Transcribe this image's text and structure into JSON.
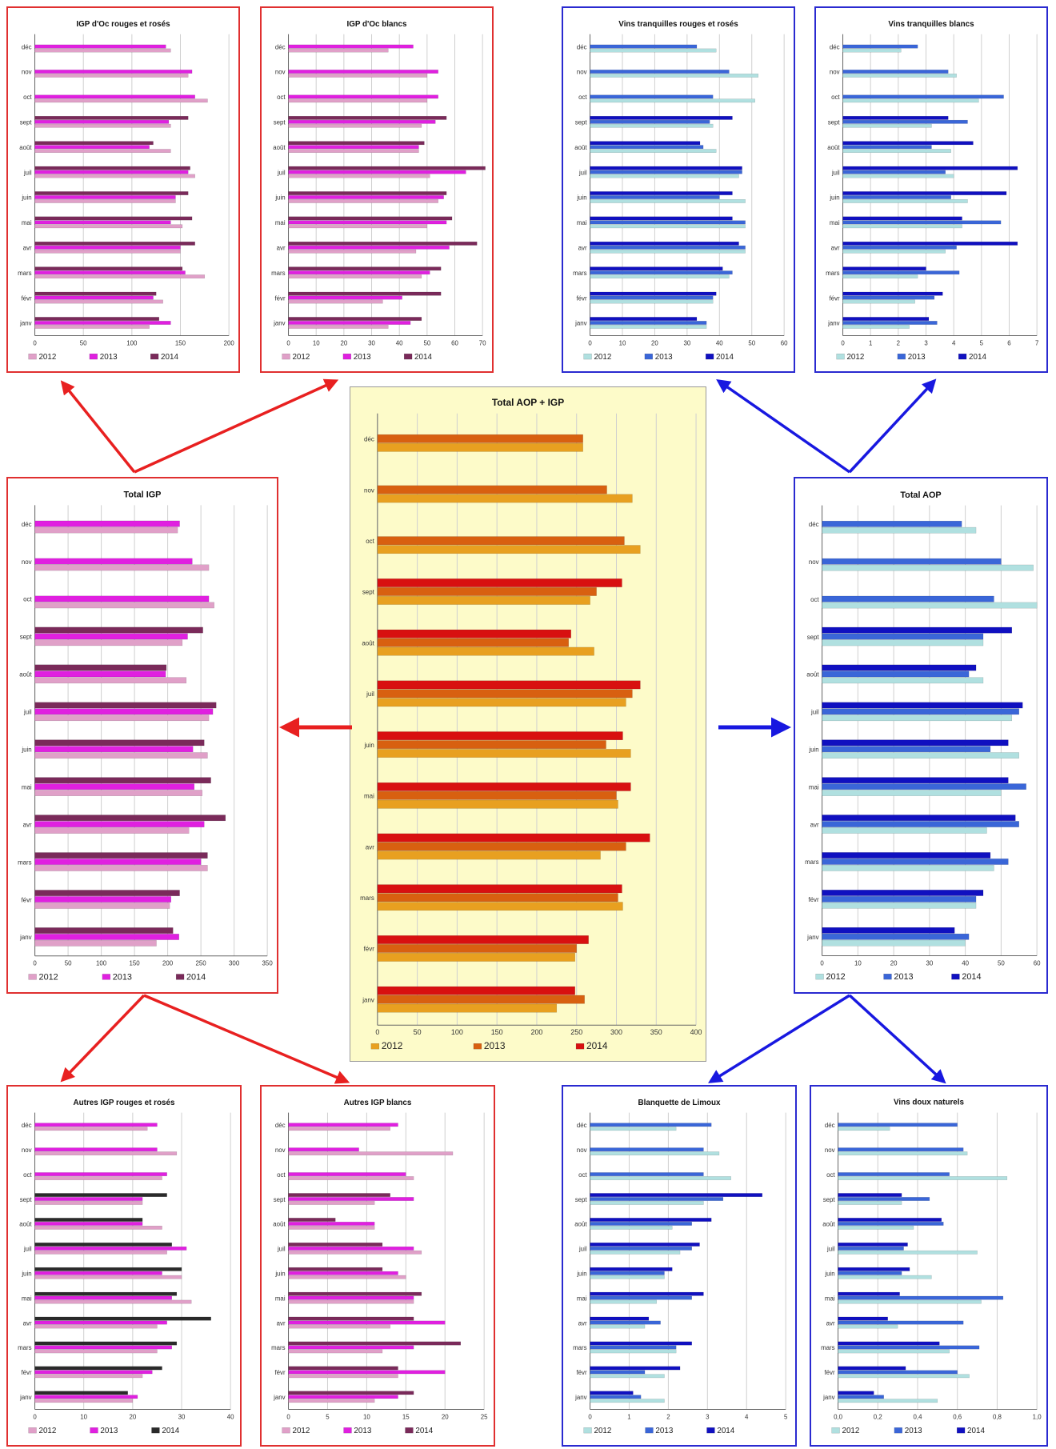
{
  "months": [
    "janv",
    "févr",
    "mars",
    "avr",
    "mai",
    "juin",
    "juil",
    "août",
    "sept",
    "oct",
    "nov",
    "déc"
  ],
  "colors": {
    "pink": [
      "#e0a0c8",
      "#e020e0",
      "#7a2a5a"
    ],
    "orange": [
      "#e8a020",
      "#d86010",
      "#d81010"
    ],
    "blue": [
      "#b0e0e0",
      "#3a66d8",
      "#1010c0"
    ],
    "dark_series": [
      "#e0a0c8",
      "#e020e0",
      "#2a2a2a"
    ]
  },
  "chart_data": [
    {
      "id": "igp-oc-rouges",
      "type": "bar",
      "orientation": "horizontal",
      "title": "IGP d'Oc rouges et rosés",
      "xlim": [
        0,
        200
      ],
      "xticks": [
        0,
        50,
        100,
        150,
        200
      ],
      "palette": "pink",
      "series": [
        {
          "name": "2012",
          "values": [
            118,
            132,
            175,
            150,
            152,
            145,
            165,
            140,
            140,
            178,
            158,
            140
          ]
        },
        {
          "name": "2013",
          "values": [
            140,
            122,
            155,
            150,
            140,
            145,
            158,
            118,
            138,
            165,
            162,
            135
          ]
        },
        {
          "name": "2014",
          "values": [
            128,
            125,
            152,
            165,
            162,
            158,
            160,
            122,
            158,
            0,
            0,
            0
          ]
        }
      ]
    },
    {
      "id": "igp-oc-blancs",
      "type": "bar",
      "orientation": "horizontal",
      "title": "IGP d'Oc blancs",
      "xlim": [
        0,
        70
      ],
      "xticks": [
        0,
        10,
        20,
        30,
        40,
        50,
        60,
        70
      ],
      "palette": "pink",
      "series": [
        {
          "name": "2012",
          "values": [
            36,
            34,
            48,
            46,
            50,
            54,
            51,
            47,
            48,
            50,
            50,
            36
          ]
        },
        {
          "name": "2013",
          "values": [
            44,
            41,
            51,
            58,
            57,
            56,
            64,
            47,
            53,
            54,
            54,
            45
          ]
        },
        {
          "name": "2014",
          "values": [
            48,
            55,
            55,
            68,
            59,
            57,
            71,
            49,
            57,
            0,
            0,
            0
          ]
        }
      ]
    },
    {
      "id": "vins-tranquilles-rouges",
      "type": "bar",
      "orientation": "horizontal",
      "title": "Vins tranquilles rouges et rosés",
      "xlim": [
        0,
        60
      ],
      "xticks": [
        0,
        10,
        20,
        30,
        40,
        50,
        60
      ],
      "palette": "blue",
      "series": [
        {
          "name": "2012",
          "values": [
            36,
            38,
            43,
            48,
            48,
            48,
            46,
            39,
            38,
            51,
            52,
            39
          ]
        },
        {
          "name": "2013",
          "values": [
            36,
            38,
            44,
            48,
            48,
            40,
            47,
            35,
            37,
            38,
            43,
            33
          ]
        },
        {
          "name": "2014",
          "values": [
            33,
            39,
            41,
            46,
            44,
            44,
            47,
            34,
            44,
            0,
            0,
            0
          ]
        }
      ]
    },
    {
      "id": "vins-tranquilles-blancs",
      "type": "bar",
      "orientation": "horizontal",
      "title": "Vins tranquilles blancs",
      "xlim": [
        0,
        7
      ],
      "xticks": [
        0,
        1,
        2,
        3,
        4,
        5,
        6,
        7
      ],
      "palette": "blue",
      "series": [
        {
          "name": "2012",
          "values": [
            2.4,
            2.6,
            2.7,
            3.7,
            4.3,
            4.5,
            4.0,
            3.9,
            3.2,
            4.9,
            4.1,
            2.1
          ]
        },
        {
          "name": "2013",
          "values": [
            3.4,
            3.3,
            4.2,
            4.1,
            5.7,
            3.9,
            3.7,
            3.2,
            4.5,
            5.8,
            3.8,
            2.7
          ]
        },
        {
          "name": "2014",
          "values": [
            3.1,
            3.6,
            3.0,
            6.3,
            4.3,
            5.9,
            6.3,
            4.7,
            3.8,
            0,
            0,
            0
          ]
        }
      ]
    },
    {
      "id": "total-igp",
      "type": "bar",
      "orientation": "horizontal",
      "title": "Total IGP",
      "xlim": [
        0,
        350
      ],
      "xticks": [
        0,
        50,
        100,
        150,
        200,
        250,
        300,
        350
      ],
      "palette": "pink",
      "series": [
        {
          "name": "2012",
          "values": [
            183,
            203,
            260,
            232,
            252,
            260,
            262,
            228,
            222,
            270,
            262,
            215
          ]
        },
        {
          "name": "2013",
          "values": [
            217,
            205,
            250,
            255,
            240,
            238,
            268,
            197,
            230,
            262,
            237,
            218
          ]
        },
        {
          "name": "2014",
          "values": [
            208,
            218,
            260,
            287,
            265,
            255,
            273,
            198,
            253,
            0,
            0,
            0
          ]
        }
      ]
    },
    {
      "id": "total-aop-igp",
      "type": "bar",
      "orientation": "horizontal",
      "title": "Total AOP + IGP",
      "xlim": [
        0,
        400
      ],
      "xticks": [
        0,
        50,
        100,
        150,
        200,
        250,
        300,
        350,
        400
      ],
      "palette": "orange",
      "series": [
        {
          "name": "2012",
          "values": [
            225,
            248,
            308,
            280,
            302,
            318,
            312,
            272,
            267,
            330,
            320,
            258
          ]
        },
        {
          "name": "2013",
          "values": [
            260,
            250,
            302,
            312,
            300,
            287,
            320,
            240,
            275,
            310,
            288,
            258
          ]
        },
        {
          "name": "2014",
          "values": [
            248,
            265,
            307,
            342,
            318,
            308,
            330,
            243,
            307,
            0,
            0,
            0
          ]
        }
      ]
    },
    {
      "id": "total-aop",
      "type": "bar",
      "orientation": "horizontal",
      "title": "Total AOP",
      "xlim": [
        0,
        60
      ],
      "xticks": [
        0,
        10,
        20,
        30,
        40,
        50,
        60
      ],
      "palette": "blue",
      "series": [
        {
          "name": "2012",
          "values": [
            40,
            43,
            48,
            46,
            50,
            55,
            53,
            45,
            45,
            60,
            59,
            43
          ]
        },
        {
          "name": "2013",
          "values": [
            41,
            43,
            52,
            55,
            57,
            47,
            55,
            41,
            45,
            48,
            50,
            39
          ]
        },
        {
          "name": "2014",
          "values": [
            37,
            45,
            47,
            54,
            52,
            52,
            56,
            43,
            53,
            0,
            0,
            0
          ]
        }
      ]
    },
    {
      "id": "autres-igp-rouges",
      "type": "bar",
      "orientation": "horizontal",
      "title": "Autres IGP rouges et rosés",
      "xlim": [
        0,
        40
      ],
      "xticks": [
        0,
        10,
        20,
        30,
        40
      ],
      "palette": "dark_series",
      "series": [
        {
          "name": "2012",
          "values": [
            20,
            22,
            25,
            25,
            32,
            30,
            27,
            26,
            22,
            26,
            29,
            23
          ]
        },
        {
          "name": "2013",
          "values": [
            21,
            24,
            28,
            27,
            28,
            26,
            31,
            22,
            22,
            27,
            25,
            25
          ]
        },
        {
          "name": "2014",
          "values": [
            19,
            26,
            29,
            36,
            29,
            30,
            28,
            22,
            27,
            0,
            0,
            0
          ]
        }
      ]
    },
    {
      "id": "autres-igp-blancs",
      "type": "bar",
      "orientation": "horizontal",
      "title": "Autres IGP blancs",
      "xlim": [
        0,
        25
      ],
      "xticks": [
        0,
        5,
        10,
        15,
        20,
        25
      ],
      "palette": "pink",
      "series": [
        {
          "name": "2012",
          "values": [
            11,
            14,
            12,
            13,
            16,
            15,
            17,
            11,
            11,
            16,
            21,
            13
          ]
        },
        {
          "name": "2013",
          "values": [
            14,
            20,
            16,
            20,
            16,
            14,
            16,
            11,
            16,
            15,
            9,
            14
          ]
        },
        {
          "name": "2014",
          "values": [
            16,
            14,
            22,
            16,
            17,
            12,
            12,
            6,
            13,
            0,
            0,
            0
          ]
        }
      ]
    },
    {
      "id": "blanquette-limoux",
      "type": "bar",
      "orientation": "horizontal",
      "title": "Blanquette de Limoux",
      "xlim": [
        0,
        5
      ],
      "xticks": [
        0,
        1,
        2,
        3,
        4,
        5
      ],
      "palette": "blue",
      "series": [
        {
          "name": "2012",
          "values": [
            1.9,
            1.9,
            2.2,
            1.4,
            1.7,
            1.9,
            2.3,
            2.1,
            2.9,
            3.6,
            3.3,
            2.2
          ]
        },
        {
          "name": "2013",
          "values": [
            1.3,
            1.4,
            2.2,
            1.8,
            2.6,
            1.9,
            2.6,
            2.6,
            3.4,
            2.9,
            2.9,
            3.1
          ]
        },
        {
          "name": "2014",
          "values": [
            1.1,
            2.3,
            2.6,
            1.5,
            2.9,
            2.1,
            2.8,
            3.1,
            4.4,
            0,
            0,
            0
          ]
        }
      ]
    },
    {
      "id": "vins-doux-naturels",
      "type": "bar",
      "orientation": "horizontal",
      "title": "Vins doux naturels",
      "xlim": [
        0,
        1.0
      ],
      "xticks": [
        0,
        0.2,
        0.4,
        0.6,
        0.8,
        1.0
      ],
      "xticklabels": [
        "0,0",
        "0,2",
        "0,4",
        "0,6",
        "0,8",
        "1,0"
      ],
      "palette": "blue",
      "series": [
        {
          "name": "2012",
          "values": [
            0.5,
            0.66,
            0.56,
            0.3,
            0.72,
            0.47,
            0.7,
            0.38,
            0.32,
            0.85,
            0.65,
            0.26
          ]
        },
        {
          "name": "2013",
          "values": [
            0.23,
            0.6,
            0.71,
            0.63,
            0.83,
            0.32,
            0.33,
            0.53,
            0.46,
            0.56,
            0.63,
            0.6
          ]
        },
        {
          "name": "2014",
          "values": [
            0.18,
            0.34,
            0.51,
            0.25,
            0.31,
            0.36,
            0.35,
            0.52,
            0.32,
            0,
            0,
            0
          ]
        }
      ]
    }
  ]
}
